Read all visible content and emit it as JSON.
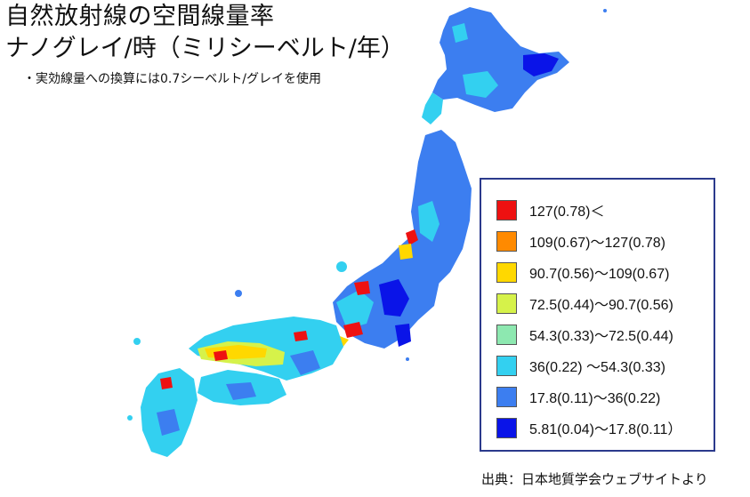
{
  "title": "自然放射線の空間線量率",
  "subtitle": "ナノグレイ/時（ミリシーベルト/年）",
  "note": "・実効線量への換算には0.7シーベルト/グレイを使用",
  "legend": {
    "items": [
      {
        "label": "127(0.78)＜",
        "color": "#ee1111"
      },
      {
        "label": "109(0.67)～127(0.78)",
        "color": "#ff8a00"
      },
      {
        "label": "90.7(0.56)～109(0.67)",
        "color": "#ffd800"
      },
      {
        "label": "72.5(0.44)～90.7(0.56)",
        "color": "#d6f24a"
      },
      {
        "label": "54.3(0.33)～72.5(0.44)",
        "color": "#8de8b0"
      },
      {
        "label": "36(0.22) ～54.3(0.33)",
        "color": "#33d0f0"
      },
      {
        "label": "17.8(0.11)～36(0.22)",
        "color": "#3c7ef0"
      },
      {
        "label": "5.81(0.04)～17.8(0.11）",
        "color": "#0a14e8"
      }
    ]
  },
  "source": "出典：日本地質学会ウェブサイトより"
}
